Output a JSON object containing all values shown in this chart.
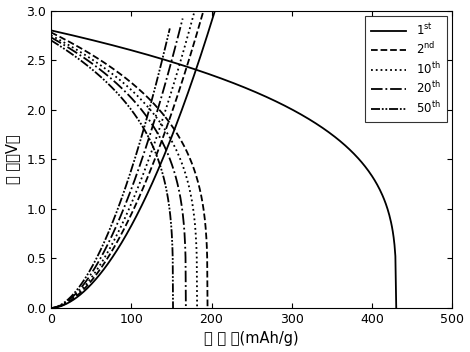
{
  "xlabel": "比 容 量(mAh/g)",
  "ylabel": "电 压（V）",
  "xlim": [
    0,
    500
  ],
  "ylim": [
    0,
    3.0
  ],
  "xticks": [
    0,
    100,
    200,
    300,
    400,
    500
  ],
  "yticks": [
    0.0,
    0.5,
    1.0,
    1.5,
    2.0,
    2.5,
    3.0
  ],
  "line_color": "black",
  "line_width": 1.3,
  "cycles": [
    {
      "discharge_cap": 430,
      "charge_cap": 205,
      "discharge_v_start": 2.8,
      "charge_v_end": 3.02
    },
    {
      "discharge_cap": 195,
      "charge_cap": 190,
      "discharge_v_start": 2.78,
      "charge_v_end": 3.0
    },
    {
      "discharge_cap": 182,
      "charge_cap": 178,
      "discharge_v_start": 2.75,
      "charge_v_end": 2.97
    },
    {
      "discharge_cap": 168,
      "charge_cap": 164,
      "discharge_v_start": 2.73,
      "charge_v_end": 2.92
    },
    {
      "discharge_cap": 152,
      "charge_cap": 148,
      "discharge_v_start": 2.7,
      "charge_v_end": 2.82
    }
  ]
}
